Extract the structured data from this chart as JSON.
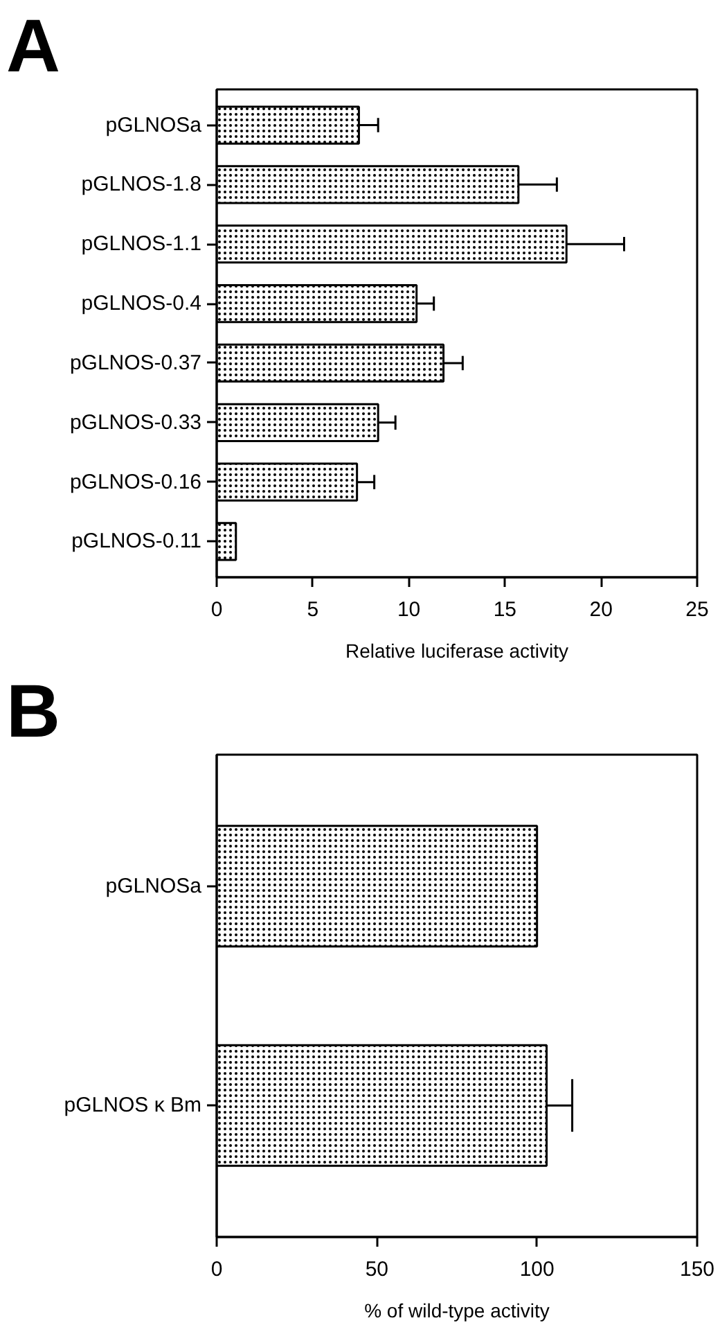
{
  "chart_data": [
    {
      "type": "bar",
      "title": "A",
      "orientation": "horizontal",
      "categories": [
        "pGLNOSa",
        "pGLNOS-1.8",
        "pGLNOS-1.1",
        "pGLNOS-0.4",
        "pGLNOS-0.37",
        "pGLNOS-0.33",
        "pGLNOS-0.16",
        "pGLNOS-0.11"
      ],
      "values": [
        7.4,
        15.7,
        18.2,
        10.4,
        11.8,
        8.4,
        7.3,
        1.0
      ],
      "errors": [
        1.0,
        2.0,
        3.0,
        0.9,
        1.0,
        0.9,
        0.9,
        null
      ],
      "color": "#ffffff",
      "xlim": [
        0,
        25
      ],
      "xticks": [
        0,
        5,
        10,
        15,
        20,
        25
      ],
      "xlabel": "Relative luciferase activity"
    },
    {
      "type": "bar",
      "title": "B",
      "orientation": "horizontal",
      "categories": [
        "pGLNOSa",
        "pGLNOS κ Bm"
      ],
      "values": [
        100,
        103
      ],
      "errors": [
        null,
        8
      ],
      "color": "#ffffff",
      "xlim": [
        0,
        150
      ],
      "xticks": [
        0,
        50,
        100,
        150
      ],
      "xlabel": "% of wild-type activity"
    }
  ]
}
